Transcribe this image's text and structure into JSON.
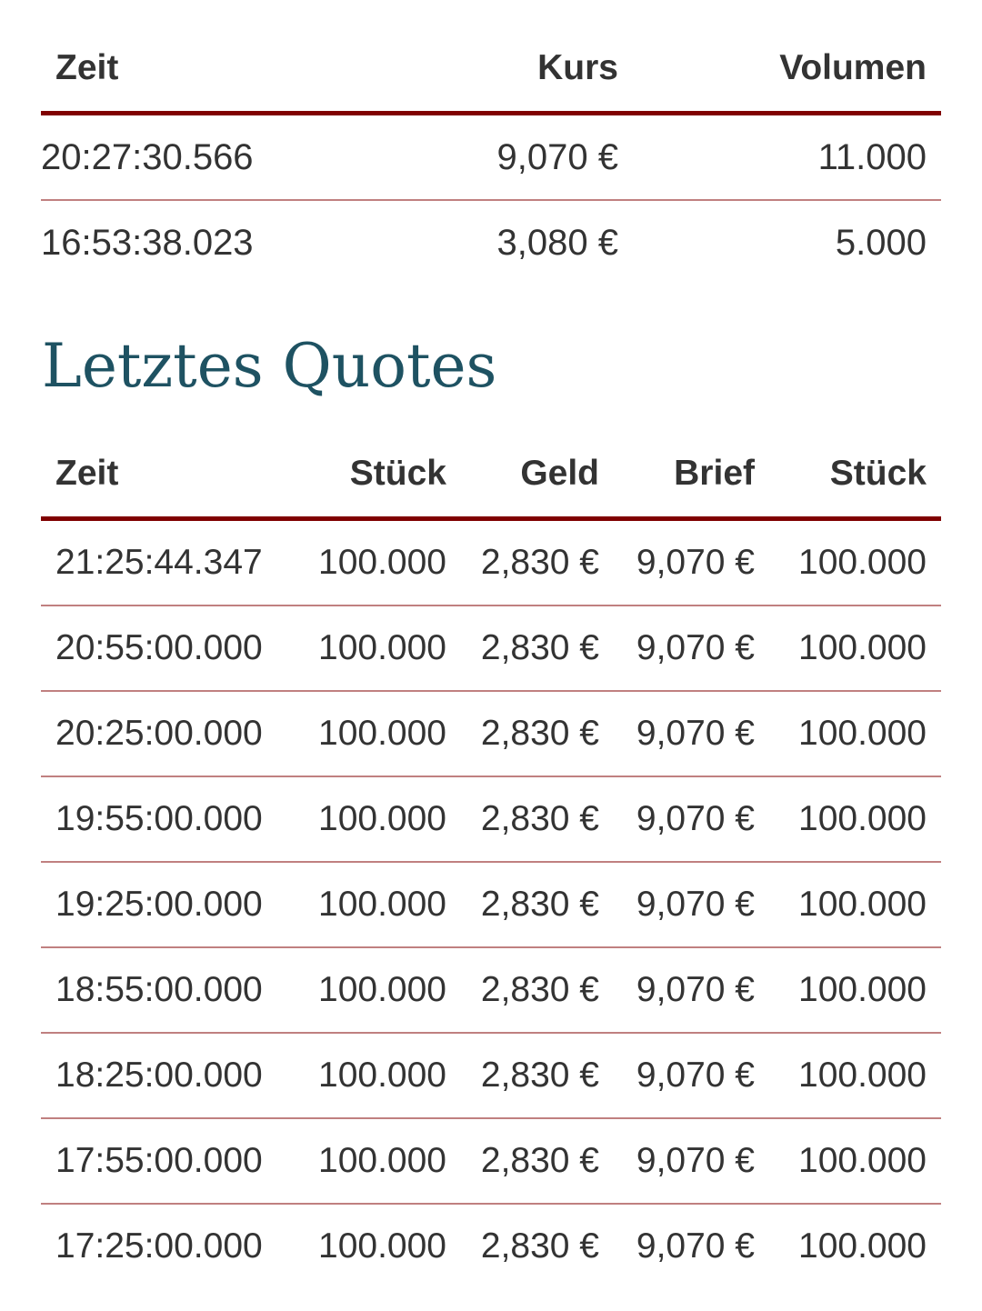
{
  "trades": {
    "headers": [
      "Zeit",
      "Kurs",
      "Volumen"
    ],
    "rows": [
      [
        "20:27:30.566",
        "9,070 €",
        "11.000"
      ],
      [
        "16:53:38.023",
        "3,080 €",
        "5.000"
      ]
    ]
  },
  "quotes": {
    "title": "Letztes Quotes",
    "headers": [
      "Zeit",
      "Stück",
      "Geld",
      "Brief",
      "Stück"
    ],
    "rows": [
      [
        "21:25:44.347",
        "100.000",
        "2,830 €",
        "9,070 €",
        "100.000"
      ],
      [
        "20:55:00.000",
        "100.000",
        "2,830 €",
        "9,070 €",
        "100.000"
      ],
      [
        "20:25:00.000",
        "100.000",
        "2,830 €",
        "9,070 €",
        "100.000"
      ],
      [
        "19:55:00.000",
        "100.000",
        "2,830 €",
        "9,070 €",
        "100.000"
      ],
      [
        "19:25:00.000",
        "100.000",
        "2,830 €",
        "9,070 €",
        "100.000"
      ],
      [
        "18:55:00.000",
        "100.000",
        "2,830 €",
        "9,070 €",
        "100.000"
      ],
      [
        "18:25:00.000",
        "100.000",
        "2,830 €",
        "9,070 €",
        "100.000"
      ],
      [
        "17:55:00.000",
        "100.000",
        "2,830 €",
        "9,070 €",
        "100.000"
      ],
      [
        "17:25:00.000",
        "100.000",
        "2,830 €",
        "9,070 €",
        "100.000"
      ]
    ]
  },
  "colors": {
    "header_rule": "#800000",
    "row_rule": "#c08080",
    "title": "#1e5262",
    "text": "#333333"
  }
}
